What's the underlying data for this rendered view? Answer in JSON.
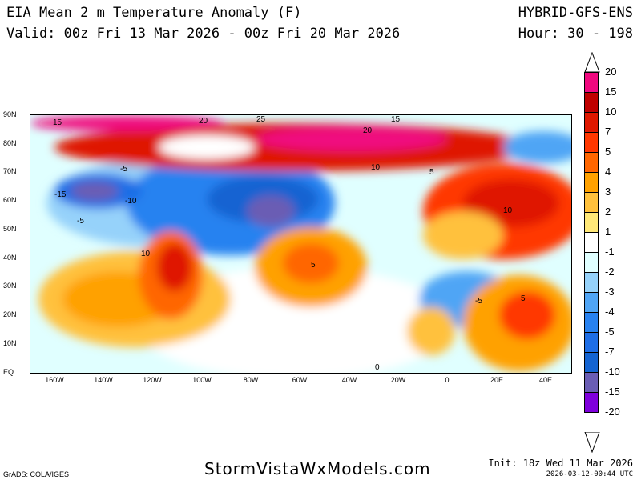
{
  "header": {
    "title": "EIA Mean 2 m Temperature Anomaly (F)",
    "valid": "Valid: 00z Fri 13 Mar 2026 - 00z Fri 20 Mar 2026",
    "model": "HYBRID-GFS-ENS",
    "hour": "Hour: 30 - 198"
  },
  "map": {
    "lat_labels": [
      "90N",
      "80N",
      "70N",
      "60N",
      "50N",
      "40N",
      "30N",
      "20N",
      "10N",
      "EQ"
    ],
    "lon_labels": [
      "160W",
      "140W",
      "120W",
      "100W",
      "80W",
      "60W",
      "40W",
      "20W",
      "0",
      "20E",
      "40E"
    ],
    "contour_labels": [
      "15",
      "20",
      "25",
      "20",
      "15",
      "10",
      "5",
      "-5",
      "-10",
      "-15",
      "-5",
      "10",
      "5",
      "0",
      "-5",
      "5",
      "10"
    ]
  },
  "colorbar": {
    "labels": [
      "20",
      "15",
      "10",
      "7",
      "5",
      "4",
      "3",
      "2",
      "1",
      "-1",
      "-2",
      "-3",
      "-4",
      "-5",
      "-7",
      "-10",
      "-15",
      "-20"
    ],
    "colors": [
      "#f0087f",
      "#bf0000",
      "#df1800",
      "#ff3700",
      "#ff6600",
      "#ffa100",
      "#ffc13c",
      "#ffe878",
      "#ffffff",
      "#e0ffff",
      "#96d2fa",
      "#50a5f5",
      "#2882f0",
      "#1e6ee6",
      "#1464d2",
      "#6a5db4",
      "#7f00dc"
    ]
  },
  "footer": {
    "site": "StormVistaWxModels.com",
    "grads": "GrADS: COLA/IGES",
    "init": "Init: 18z Wed 11 Mar 2026",
    "timestamp": "2026-03-12-00:44 UTC"
  }
}
